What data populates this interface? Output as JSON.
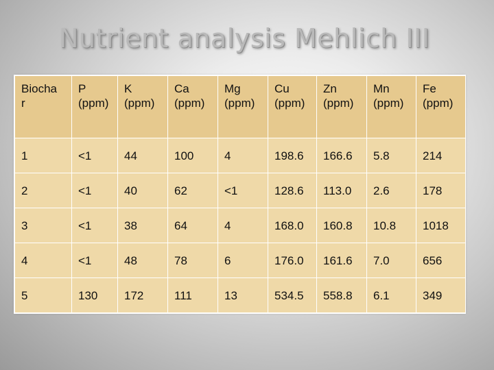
{
  "title": "Nutrient analysis Mehlich III",
  "table": {
    "headers": [
      {
        "line1": "Biocha",
        "line2": "r"
      },
      {
        "line1": "P",
        "line2": "(ppm)"
      },
      {
        "line1": "K",
        "line2": "(ppm)"
      },
      {
        "line1": "Ca",
        "line2": "(ppm)"
      },
      {
        "line1": "Mg",
        "line2": "(ppm)"
      },
      {
        "line1": "Cu",
        "line2": "(ppm)"
      },
      {
        "line1": "Zn",
        "line2": "(ppm)"
      },
      {
        "line1": "Mn",
        "line2": "(ppm)"
      },
      {
        "line1": "Fe",
        "line2": "(ppm)"
      }
    ],
    "rows": [
      [
        "1",
        "<1",
        "44",
        "100",
        "4",
        "198.6",
        "166.6",
        "5.8",
        "214"
      ],
      [
        "2",
        "<1",
        "40",
        "62",
        "<1",
        "128.6",
        "113.0",
        "2.6",
        "178"
      ],
      [
        "3",
        "<1",
        "38",
        "64",
        "4",
        "168.0",
        "160.8",
        "10.8",
        "1018"
      ],
      [
        "4",
        "<1",
        "48",
        "78",
        "6",
        "176.0",
        "161.6",
        "7.0",
        "656"
      ],
      [
        "5",
        "130",
        "172",
        "111",
        "13",
        "534.5",
        "558.8",
        "6.1",
        "349"
      ]
    ]
  },
  "colors": {
    "header_bg": "#e6c98e",
    "cell_bg": "#efd9a8",
    "title": "#b9b9b9"
  }
}
